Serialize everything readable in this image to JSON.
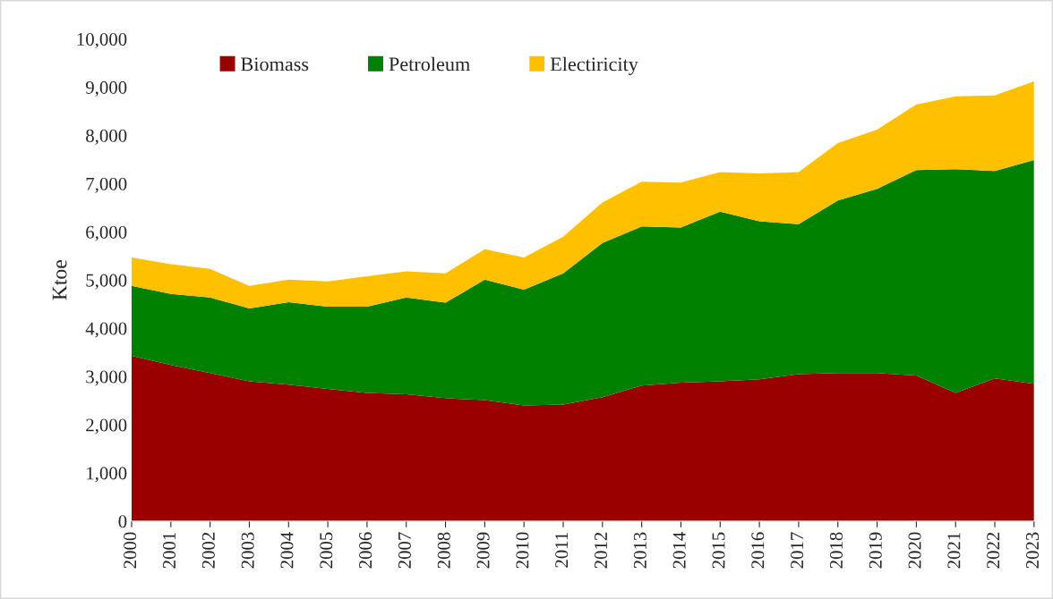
{
  "chart_data": {
    "type": "area",
    "stacked": true,
    "ylabel": "Ktoe",
    "categories": [
      "2000",
      "2001",
      "2002",
      "2003",
      "2004",
      "2005",
      "2006",
      "2007",
      "2008",
      "2009",
      "2010",
      "2011",
      "2012",
      "2013",
      "2014",
      "2015",
      "2016",
      "2017",
      "2018",
      "2019",
      "2020",
      "2021",
      "2022",
      "2023"
    ],
    "series": [
      {
        "name": "Biomass",
        "color": "#990000",
        "values": [
          3430,
          3240,
          3070,
          2900,
          2830,
          2740,
          2660,
          2630,
          2550,
          2510,
          2400,
          2420,
          2570,
          2810,
          2870,
          2900,
          2940,
          3050,
          3070,
          3070,
          3020,
          2660,
          2960,
          2850
        ]
      },
      {
        "name": "Petroleum",
        "color": "#008000",
        "values": [
          1450,
          1470,
          1570,
          1510,
          1710,
          1710,
          1790,
          2010,
          1980,
          2500,
          2400,
          2720,
          3200,
          3300,
          3220,
          3520,
          3280,
          3110,
          3580,
          3820,
          4260,
          4640,
          4300,
          4640
        ]
      },
      {
        "name": "Electiricity",
        "color": "#ffc000",
        "values": [
          590,
          620,
          590,
          470,
          470,
          520,
          630,
          540,
          610,
          630,
          670,
          760,
          840,
          930,
          930,
          820,
          990,
          1080,
          1190,
          1230,
          1360,
          1510,
          1570,
          1630
        ]
      }
    ],
    "ylim": [
      0,
      10000
    ],
    "yticks": [
      {
        "value": 0,
        "label": "0"
      },
      {
        "value": 1000,
        "label": "1,000"
      },
      {
        "value": 2000,
        "label": "2,000"
      },
      {
        "value": 3000,
        "label": "3,000"
      },
      {
        "value": 4000,
        "label": "4,000"
      },
      {
        "value": 5000,
        "label": "5,000"
      },
      {
        "value": 6000,
        "label": "6,000"
      },
      {
        "value": 7000,
        "label": "7,000"
      },
      {
        "value": 8000,
        "label": "8,000"
      },
      {
        "value": 9000,
        "label": "9,000"
      },
      {
        "value": 10000,
        "label": "10,000"
      }
    ],
    "grid": false,
    "legend": "top"
  }
}
